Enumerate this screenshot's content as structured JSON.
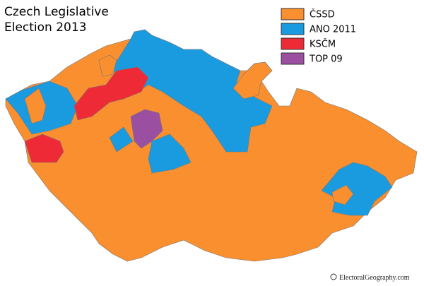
{
  "title_lines": [
    "Czech Legislative",
    "Election 2013"
  ],
  "legend": [
    {
      "label": "ČSSD",
      "color": "#f98f2f"
    },
    {
      "label": "ANO 2011",
      "color": "#1a9be0"
    },
    {
      "label": "KSČM",
      "color": "#ee2a37"
    },
    {
      "label": "TOP 09",
      "color": "#9b4fa0"
    }
  ],
  "credit": "ElectoralGeography.com"
}
